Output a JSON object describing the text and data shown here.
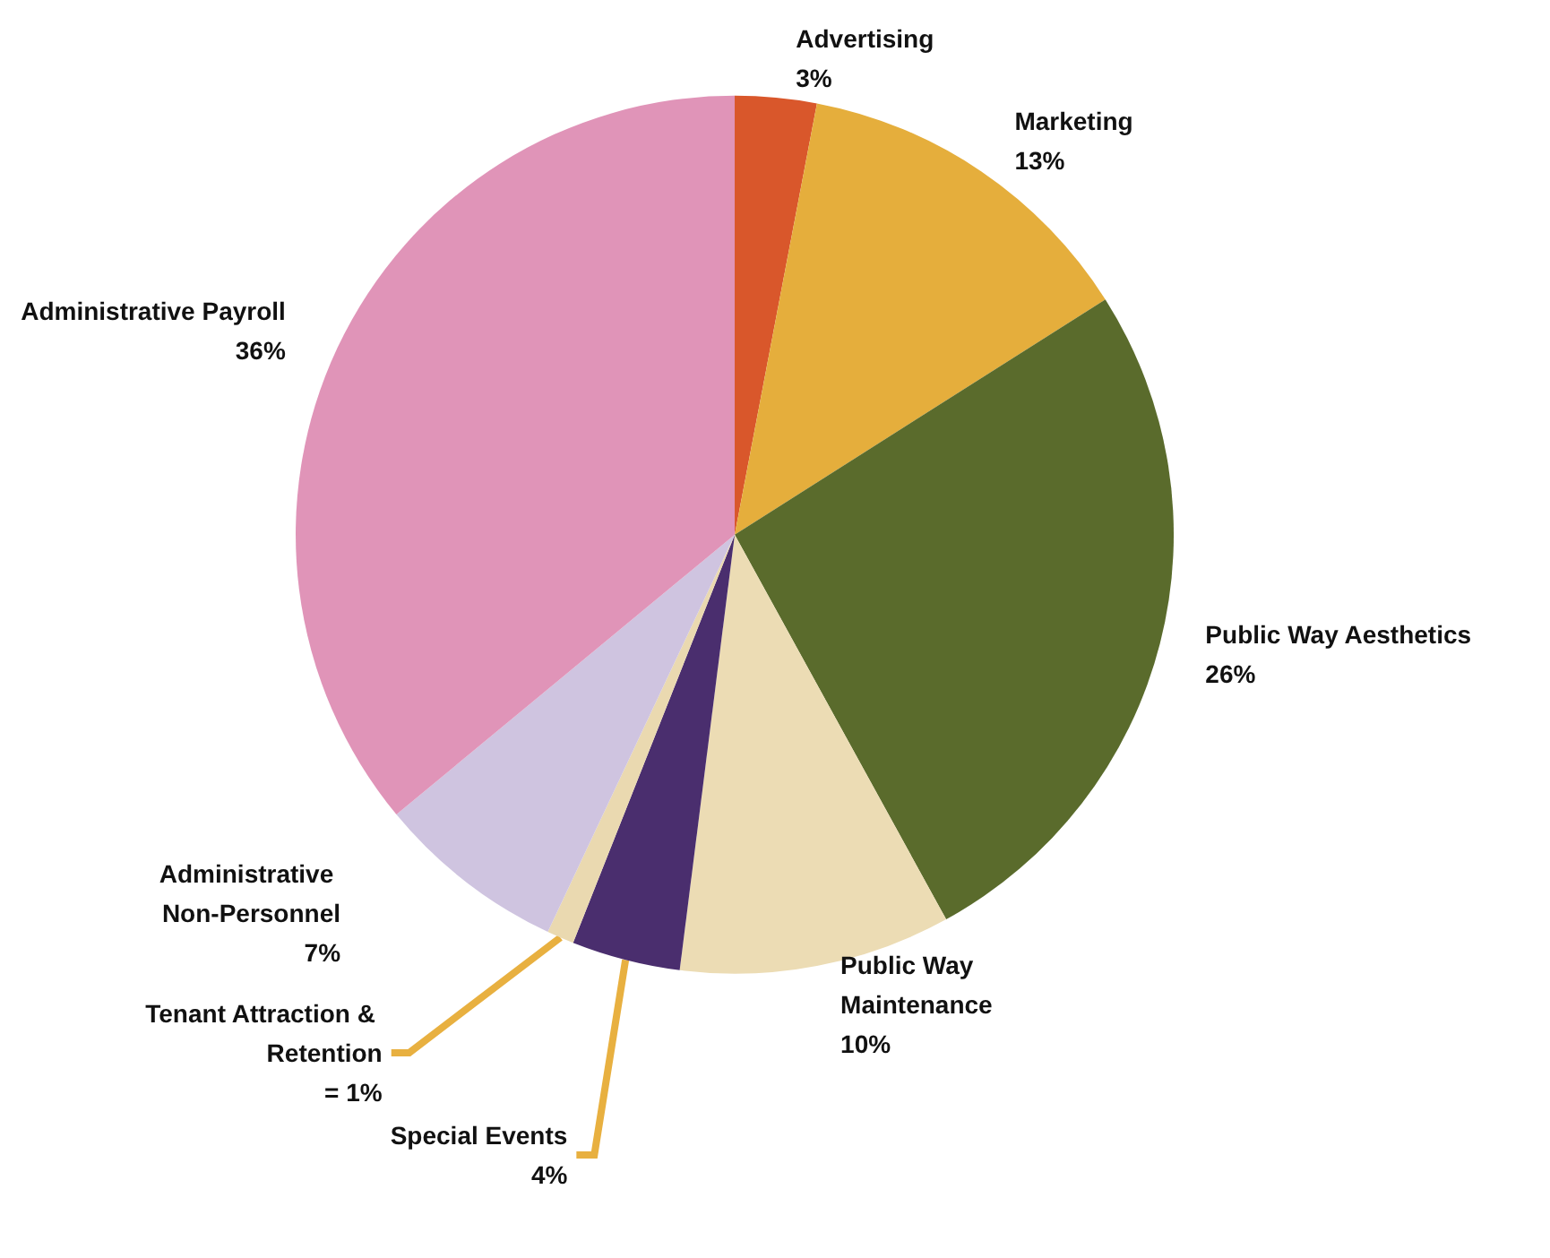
{
  "chart_data": {
    "type": "pie",
    "categories": [
      "Advertising",
      "Marketing",
      "Public Way Aesthetics",
      "Public Way Maintenance",
      "Special Events",
      "Tenant Attraction & Retention",
      "Administrative Non-Personnel",
      "Administrative Payroll"
    ],
    "values": [
      3,
      13,
      26,
      10,
      4,
      1,
      7,
      36
    ],
    "value_labels": [
      "3%",
      "13%",
      "26%",
      "10%",
      "4%",
      "= 1%",
      "7%",
      "36%"
    ],
    "colors": [
      "#d9572b",
      "#e5ae3c",
      "#5a6b2c",
      "#ecdcb4",
      "#4a2e6e",
      "#ead9b0",
      "#cfc4e0",
      "#e094b8"
    ],
    "legend": false
  }
}
